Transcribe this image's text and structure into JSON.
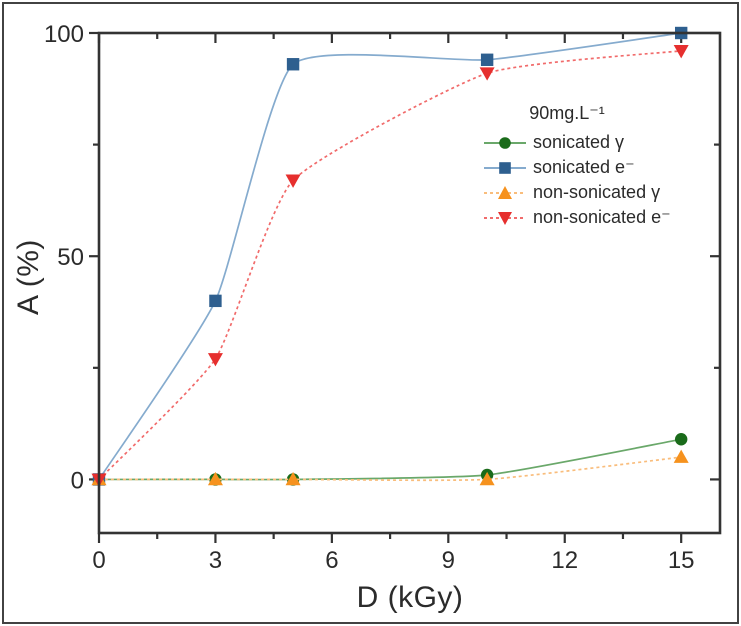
{
  "figure": {
    "background": "#ffffff",
    "border_color": "#424242"
  },
  "chart_data": {
    "type": "line",
    "title": "",
    "xlabel": "D (kGy)",
    "ylabel": "A (%)",
    "legend_title": "90mg.L⁻¹",
    "legend_position": "upper right inside",
    "grid": false,
    "axis_color": "#333333",
    "text_color": "#2b2b2b",
    "xlim": [
      0,
      16
    ],
    "ylim": [
      -12,
      100
    ],
    "x_major_ticks": [
      0,
      3,
      6,
      9,
      12,
      15
    ],
    "x_minor_ticks": [
      1.5,
      4.5,
      7.5,
      10.5,
      13.5
    ],
    "y_major_ticks": [
      0,
      50,
      100
    ],
    "y_minor_ticks": [
      25,
      75
    ],
    "x": [
      0,
      3,
      5,
      10,
      15
    ],
    "series": [
      {
        "name": "sonicated γ",
        "marker": "circle",
        "marker_color": "#1a6b1a",
        "line_color": "#6aa86a",
        "line_style": "solid",
        "values": [
          0,
          0,
          0,
          1,
          9
        ]
      },
      {
        "name": "sonicated e⁻",
        "marker": "square",
        "marker_color": "#2e5f8f",
        "line_color": "#85abce",
        "line_style": "solid",
        "values": [
          0,
          40,
          93,
          94,
          100
        ]
      },
      {
        "name": "non-sonicated γ",
        "marker": "triangle-up",
        "marker_color": "#f6921e",
        "line_color": "#f9bd7c",
        "line_style": "dashed",
        "values": [
          0,
          0,
          0,
          0,
          5
        ]
      },
      {
        "name": "non-sonicated e⁻",
        "marker": "triangle-down",
        "marker_color": "#e62f2e",
        "line_color": "#f16b6b",
        "line_style": "dashed",
        "values": [
          0,
          27,
          67,
          91,
          96
        ]
      }
    ]
  }
}
